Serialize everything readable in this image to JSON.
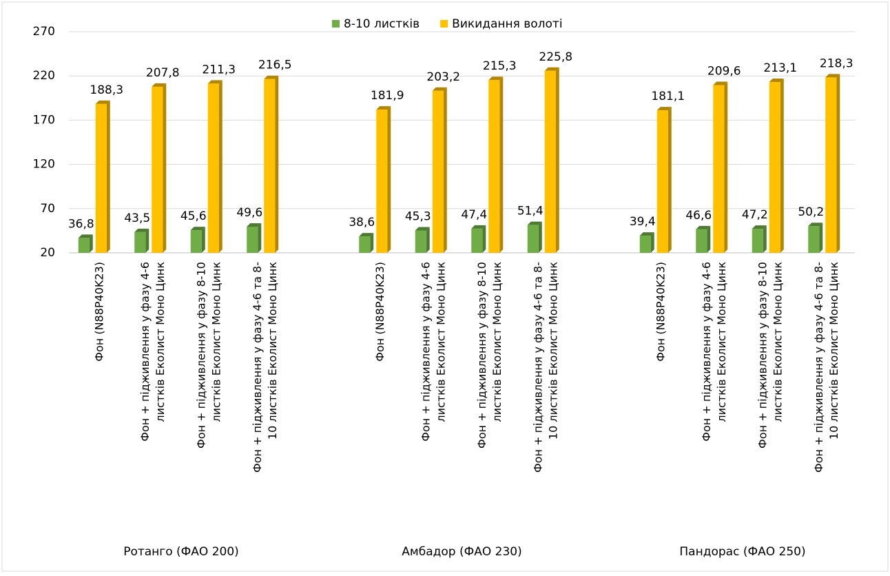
{
  "chart_data": {
    "type": "bar",
    "categories": [
      [
        "Фон (N88P40K23)"
      ],
      [
        "Фон + підживлення у фазу 4-6",
        "листків Еколист Моно Цинк"
      ],
      [
        "Фон + підживлення у фазу 8-10",
        "листків Еколист Моно Цинк"
      ],
      [
        "Фон + підживлення у фазу 4-6 та 8-",
        "10 листків Еколист Моно Цинк"
      ],
      null,
      [
        "Фон (N88P40K23)"
      ],
      [
        "Фон + підживлення у фазу 4-6",
        "листків Еколист Моно Цинк"
      ],
      [
        "Фон + підживлення у фазу 8-10",
        "листків Еколист Моно Цинк"
      ],
      [
        "Фон + підживлення у фазу 4-6 та 8-",
        "10 листків Еколист Моно Цинк"
      ],
      null,
      [
        "Фон (N88P40K23)"
      ],
      [
        "Фон + підживлення у фазу 4-6",
        "листків Еколист Моно Цинк"
      ],
      [
        "Фон + підживлення у фазу 8-10",
        "листків Еколист Моно Цинк"
      ],
      [
        "Фон + підживлення у фазу 4-6 та 8-",
        "10 листків Еколист Моно Цинк"
      ]
    ],
    "groups": [
      "Ротанго (ФАО 200)",
      "Амбадор (ФАО 230)",
      "Пандорас (ФАО 250)"
    ],
    "series": [
      {
        "name": "8-10 листків",
        "color": "#70ad47",
        "side_color": "#4e7a32",
        "values": [
          36.8,
          43.5,
          45.6,
          49.6,
          null,
          38.6,
          45.3,
          47.4,
          51.4,
          null,
          39.4,
          46.6,
          47.2,
          50.2
        ],
        "value_labels": [
          "36,8",
          "43,5",
          "45,6",
          "49,6",
          null,
          "38,6",
          "45,3",
          "47,4",
          "51,4",
          null,
          "39,4",
          "46,6",
          "47,2",
          "50,2"
        ]
      },
      {
        "name": "Викидання волоті",
        "color": "#ffc000",
        "side_color": "#b38600",
        "values": [
          188.3,
          207.8,
          211.3,
          216.5,
          null,
          181.9,
          203.2,
          215.3,
          225.8,
          null,
          181.1,
          209.6,
          213.1,
          218.3
        ],
        "value_labels": [
          "188,3",
          "207,8",
          "211,3",
          "216,5",
          null,
          "181,9",
          "203,2",
          "215,3",
          "225,8",
          null,
          "181,1",
          "209,6",
          "213,1",
          "218,3"
        ]
      }
    ],
    "ylim": [
      20,
      270
    ],
    "yticks": [
      20,
      70,
      120,
      170,
      220,
      270
    ],
    "grid": true,
    "legend": "top"
  }
}
